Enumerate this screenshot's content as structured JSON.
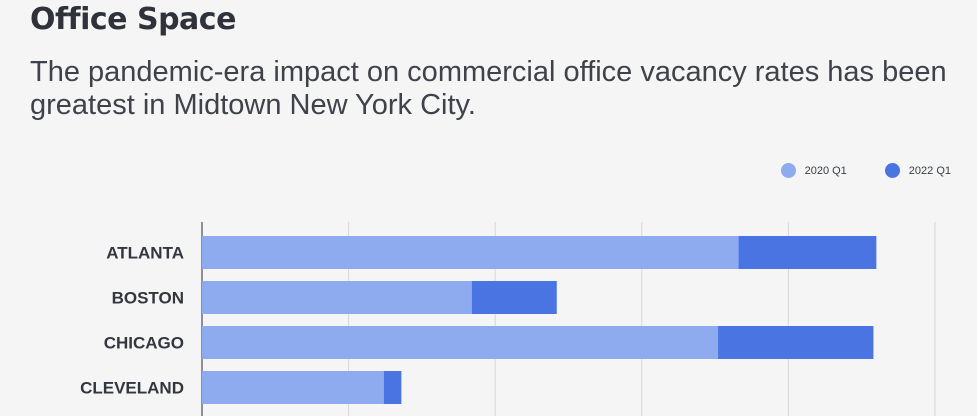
{
  "header": {
    "title": "Office Space",
    "subtitle": "The pandemic-era impact on commercial office vacancy rates has been greatest in Midtown New York City."
  },
  "legend": {
    "items": [
      {
        "label": "2020 Q1",
        "color": "#8eabf0"
      },
      {
        "label": "2022 Q1",
        "color": "#4b74e3"
      }
    ]
  },
  "chart_data": {
    "type": "bar",
    "orientation": "horizontal",
    "stacked": true,
    "categories": [
      "ATLANTA",
      "BOSTON",
      "CHICAGO",
      "CLEVELAND"
    ],
    "series": [
      {
        "name": "2020 Q1",
        "values": [
          18.3,
          9.2,
          17.6,
          6.2
        ],
        "color": "#8eabf0"
      },
      {
        "name": "2022 Q1",
        "values": [
          4.7,
          2.9,
          5.3,
          0.6
        ],
        "color": "#4b74e3"
      }
    ],
    "xlim": [
      0,
      25
    ],
    "grid": true,
    "legend_position": "top-right"
  }
}
